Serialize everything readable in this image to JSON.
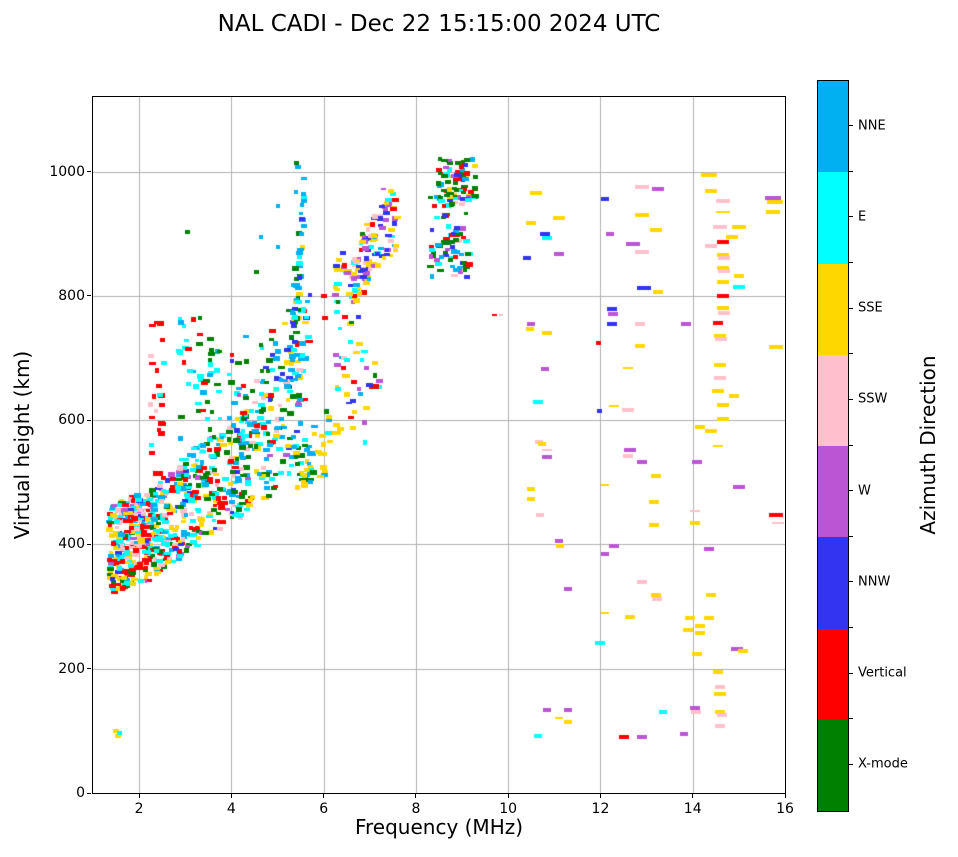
{
  "title": "NAL CADI - Dec 22 15:15:00 2024 UTC",
  "chart_data": {
    "type": "scatter",
    "title": "NAL CADI - Dec 22 15:15:00 2024 UTC",
    "xlabel": "Frequency (MHz)",
    "ylabel": "Virtual height (km)",
    "colorbar_label": "Azimuth Direction",
    "xlim": [
      1,
      16
    ],
    "ylim": [
      0,
      1120
    ],
    "xticks": [
      2,
      4,
      6,
      8,
      10,
      12,
      14,
      16
    ],
    "yticks": [
      0,
      200,
      400,
      600,
      800,
      1000
    ],
    "grid": true,
    "grid_color": "#b0b0b0",
    "legend_position": "right-colorbar",
    "categories": [
      {
        "key": "NNE",
        "label": "NNE",
        "color": "#00b0f0"
      },
      {
        "key": "E",
        "label": "E",
        "color": "#00ffff"
      },
      {
        "key": "SSE",
        "label": "SSE",
        "color": "#ffd700"
      },
      {
        "key": "SSW",
        "label": "SSW",
        "color": "#ffc0cb"
      },
      {
        "key": "W",
        "label": "W",
        "color": "#ba55d3"
      },
      {
        "key": "NNW",
        "label": "NNW",
        "color": "#3333f2"
      },
      {
        "key": "V",
        "label": "Vertical",
        "color": "#ff0000"
      },
      {
        "key": "X",
        "label": "X-mode",
        "color": "#008000"
      }
    ],
    "seed": 42,
    "marker_px": {
      "w": 6,
      "h": 4
    },
    "clusters": [
      {
        "x": [
          1.35,
          2.3
        ],
        "lo": [
          318,
          345
        ],
        "hi": [
          462,
          490
        ],
        "n": 300,
        "mix": {
          "V": 24,
          "E": 20,
          "SSW": 15,
          "SSE": 14,
          "NNE": 10,
          "W": 6,
          "NNW": 5,
          "X": 6
        }
      },
      {
        "x": [
          2.3,
          3.3
        ],
        "lo": [
          345,
          400
        ],
        "hi": [
          490,
          560
        ],
        "n": 200,
        "mix": {
          "V": 15,
          "E": 22,
          "SSW": 12,
          "SSE": 15,
          "NNE": 12,
          "X": 12,
          "W": 6,
          "NNW": 6
        }
      },
      {
        "x": [
          3.3,
          4.4
        ],
        "lo": [
          400,
          450
        ],
        "hi": [
          560,
          620
        ],
        "n": 130,
        "mix": {
          "E": 25,
          "NNE": 15,
          "X": 20,
          "SSE": 14,
          "V": 8,
          "SSW": 10,
          "NNW": 4,
          "W": 4
        }
      },
      {
        "x": [
          4.4,
          5.6
        ],
        "lo": [
          450,
          520
        ],
        "hi": [
          620,
          700
        ],
        "n": 110,
        "mix": {
          "NNE": 25,
          "E": 20,
          "X": 22,
          "SSE": 15,
          "V": 6,
          "SSW": 6,
          "NNW": 3,
          "W": 3
        }
      },
      {
        "x": [
          5.4,
          6.15
        ],
        "lo": [
          485,
          515
        ],
        "hi": [
          565,
          625
        ],
        "n": 45,
        "mix": {
          "SSE": 45,
          "NNE": 20,
          "X": 20,
          "E": 15
        }
      },
      {
        "x": [
          2.25,
          2.55
        ],
        "lo": [
          480,
          480
        ],
        "hi": [
          780,
          780
        ],
        "n": 26,
        "mix": {
          "V": 75,
          "SSW": 10,
          "E": 15
        }
      },
      {
        "x": [
          2.8,
          3.4
        ],
        "lo": [
          480,
          480
        ],
        "hi": [
          770,
          770
        ],
        "n": 40,
        "mix": {
          "E": 45,
          "X": 30,
          "NNE": 15,
          "V": 10
        }
      },
      {
        "x": [
          3.4,
          3.8
        ],
        "lo": [
          490,
          490
        ],
        "hi": [
          740,
          740
        ],
        "n": 28,
        "mix": {
          "X": 50,
          "E": 20,
          "V": 15,
          "NNE": 15
        }
      },
      {
        "x": [
          3.95,
          4.35
        ],
        "lo": [
          450,
          450
        ],
        "hi": [
          735,
          735
        ],
        "n": 40,
        "mix": {
          "X": 30,
          "NNE": 20,
          "NNW": 12,
          "W": 10,
          "E": 18,
          "V": 10
        }
      },
      {
        "x": [
          4.4,
          5.7
        ],
        "lo": [
          560,
          720
        ],
        "hi": [
          700,
          820
        ],
        "n": 70,
        "mix": {
          "NNE": 30,
          "E": 20,
          "X": 20,
          "SSE": 10,
          "V": 8,
          "SSW": 6,
          "NNW": 6
        }
      },
      {
        "x": [
          5.3,
          5.6
        ],
        "lo": [
          640,
          920
        ],
        "hi": [
          780,
          1015
        ],
        "n": 40,
        "mix": {
          "NNE": 45,
          "E": 20,
          "X": 20,
          "NNW": 8,
          "SSE": 7
        }
      },
      {
        "x": [
          6.25,
          7.0
        ],
        "lo": [
          790,
          790
        ],
        "hi": [
          870,
          870
        ],
        "n": 55,
        "mix": {
          "SSE": 40,
          "E": 15,
          "W": 12,
          "NNW": 10,
          "SSW": 10,
          "NNE": 5,
          "V": 4,
          "X": 4
        }
      },
      {
        "x": [
          6.8,
          7.6
        ],
        "lo": [
          815,
          870
        ],
        "hi": [
          905,
          975
        ],
        "n": 75,
        "mix": {
          "W": 22,
          "NNW": 22,
          "SSE": 20,
          "SSW": 12,
          "E": 10,
          "NNE": 6,
          "V": 5,
          "X": 3
        }
      },
      {
        "x": [
          6.25,
          7.2
        ],
        "lo": [
          550,
          550
        ],
        "hi": [
          790,
          790
        ],
        "n": 30,
        "mix": {
          "SSE": 30,
          "NNW": 18,
          "E": 15,
          "W": 12,
          "X": 10,
          "NNE": 8,
          "V": 7
        }
      },
      {
        "x": [
          8.45,
          9.3
        ],
        "lo": [
          955,
          955
        ],
        "hi": [
          1020,
          1020
        ],
        "n": 70,
        "mix": {
          "X": 45,
          "V": 18,
          "SSE": 10,
          "E": 10,
          "NNE": 8,
          "NNW": 5,
          "W": 4
        }
      },
      {
        "x": [
          8.3,
          9.2
        ],
        "lo": [
          830,
          830
        ],
        "hi": [
          960,
          960
        ],
        "n": 80,
        "mix": {
          "X": 30,
          "E": 18,
          "NNE": 15,
          "NNW": 12,
          "V": 10,
          "W": 8,
          "SSW": 4,
          "SSE": 3
        }
      }
    ],
    "points": [
      [
        10.6,
        966,
        "SSE",
        12
      ],
      [
        11.1,
        925,
        "SSE",
        12
      ],
      [
        10.5,
        917,
        "SSE",
        10
      ],
      [
        10.8,
        900,
        "NNW",
        10
      ],
      [
        10.85,
        893,
        "E",
        10
      ],
      [
        10.4,
        861,
        "NNW",
        8
      ],
      [
        11.1,
        867,
        "W",
        10
      ],
      [
        12.1,
        956,
        "NNW",
        8
      ],
      [
        12.9,
        975,
        "SSW",
        14
      ],
      [
        13.25,
        972,
        "W",
        12
      ],
      [
        12.9,
        930,
        "SSE",
        14
      ],
      [
        13.2,
        906,
        "SSE",
        12
      ],
      [
        12.2,
        900,
        "W",
        8
      ],
      [
        12.7,
        884,
        "W",
        14
      ],
      [
        12.9,
        871,
        "SSW",
        14
      ],
      [
        12.95,
        813,
        "NNW",
        14
      ],
      [
        13.25,
        806,
        "SSE",
        10
      ],
      [
        14.35,
        995,
        "SSE",
        16
      ],
      [
        14.4,
        968,
        "SSE",
        12
      ],
      [
        14.65,
        953,
        "SSW",
        14
      ],
      [
        14.65,
        935,
        "SSE",
        14,
        2
      ],
      [
        14.6,
        911,
        "SSW",
        14
      ],
      [
        15.0,
        911,
        "SSE",
        14
      ],
      [
        14.65,
        887,
        "V",
        12
      ],
      [
        14.4,
        881,
        "SSW",
        12
      ],
      [
        14.85,
        895,
        "SSE",
        12
      ],
      [
        14.65,
        866,
        "SSE",
        12
      ],
      [
        14.68,
        861,
        "SSW",
        12
      ],
      [
        14.65,
        845,
        "SSE",
        12
      ],
      [
        14.68,
        840,
        "SSW",
        12
      ],
      [
        15.0,
        832,
        "SSE",
        10
      ],
      [
        14.65,
        823,
        "SSE",
        12
      ],
      [
        15.0,
        815,
        "E",
        12
      ],
      [
        14.65,
        800,
        "V",
        12
      ],
      [
        15.75,
        958,
        "W",
        16
      ],
      [
        15.78,
        951,
        "SSE",
        16
      ],
      [
        15.75,
        935,
        "SSE",
        14
      ],
      [
        14.65,
        781,
        "SSE",
        12
      ],
      [
        14.68,
        772,
        "SSW",
        12
      ],
      [
        14.55,
        756,
        "V",
        10
      ],
      [
        14.6,
        736,
        "SSE",
        12
      ],
      [
        14.62,
        730,
        "SSW",
        12
      ],
      [
        14.6,
        688,
        "SSE",
        12
      ],
      [
        14.6,
        668,
        "SSW",
        12
      ],
      [
        14.55,
        647,
        "SSE",
        12
      ],
      [
        14.9,
        639,
        "SSE",
        10
      ],
      [
        10.5,
        755,
        "W",
        8
      ],
      [
        10.47,
        747,
        "SSE",
        8
      ],
      [
        10.85,
        740,
        "SSE",
        10
      ],
      [
        11.95,
        724,
        "V",
        5
      ],
      [
        10.8,
        682,
        "W",
        8
      ],
      [
        12.6,
        684,
        "SSE",
        10,
        2
      ],
      [
        12.85,
        719,
        "SSE",
        10
      ],
      [
        12.25,
        779,
        "NNW",
        10
      ],
      [
        12.28,
        771,
        "W",
        10
      ],
      [
        12.25,
        755,
        "NNW",
        10
      ],
      [
        12.85,
        755,
        "SSW",
        10
      ],
      [
        13.85,
        755,
        "W",
        10
      ],
      [
        15.8,
        718,
        "SSE",
        14
      ],
      [
        9.7,
        770,
        "V",
        5,
        2
      ],
      [
        10.65,
        629,
        "E",
        10
      ],
      [
        12.3,
        622,
        "SSE",
        10,
        2
      ],
      [
        12.6,
        617,
        "SSW",
        12
      ],
      [
        11.98,
        614,
        "NNW",
        5
      ],
      [
        14.65,
        624,
        "SSE",
        12
      ],
      [
        14.65,
        602,
        "SSE",
        12
      ],
      [
        14.15,
        589,
        "SSE",
        10
      ],
      [
        14.4,
        582,
        "SSE",
        12
      ],
      [
        10.67,
        565,
        "SSW",
        8
      ],
      [
        10.73,
        562,
        "SSE",
        8
      ],
      [
        10.85,
        552,
        "SSW",
        10,
        2
      ],
      [
        10.85,
        540,
        "W",
        10
      ],
      [
        14.55,
        558,
        "SSE",
        10,
        2
      ],
      [
        12.65,
        552,
        "W",
        12
      ],
      [
        12.6,
        542,
        "SSW",
        10
      ],
      [
        12.9,
        532,
        "W",
        10
      ],
      [
        14.1,
        532,
        "W",
        10
      ],
      [
        13.2,
        510,
        "SSE",
        10
      ],
      [
        15.0,
        492,
        "W",
        12
      ],
      [
        12.1,
        495,
        "SSE",
        8,
        2
      ],
      [
        10.5,
        490,
        "SSE",
        8
      ],
      [
        10.5,
        473,
        "SSE",
        8
      ],
      [
        13.15,
        468,
        "SSE",
        10
      ],
      [
        10.7,
        448,
        "SSW",
        8
      ],
      [
        14.05,
        453,
        "SSW",
        10,
        2
      ],
      [
        15.8,
        448,
        "V",
        14
      ],
      [
        15.85,
        435,
        "SSW",
        12,
        2
      ],
      [
        14.05,
        435,
        "SSE",
        10
      ],
      [
        13.15,
        432,
        "SSE",
        10
      ],
      [
        11.1,
        405,
        "W",
        8
      ],
      [
        11.12,
        398,
        "SSE",
        8
      ],
      [
        12.3,
        398,
        "W",
        10
      ],
      [
        12.1,
        385,
        "W",
        8
      ],
      [
        14.35,
        392,
        "W",
        10
      ],
      [
        11.3,
        329,
        "W",
        8
      ],
      [
        12.9,
        339,
        "SSW",
        10
      ],
      [
        13.2,
        318,
        "SSE",
        10
      ],
      [
        13.22,
        312,
        "SSW",
        10
      ],
      [
        14.4,
        318,
        "SSE",
        10
      ],
      [
        12.1,
        289,
        "SSE",
        8,
        2
      ],
      [
        12.65,
        284,
        "SSE",
        10
      ],
      [
        13.95,
        282,
        "SSE",
        10
      ],
      [
        14.15,
        268,
        "SSE",
        10
      ],
      [
        14.35,
        281,
        "SSE",
        10
      ],
      [
        13.9,
        263,
        "SSE",
        10
      ],
      [
        14.15,
        258,
        "SSE",
        10
      ],
      [
        12.0,
        242,
        "E",
        10
      ],
      [
        14.95,
        232,
        "W",
        12
      ],
      [
        15.1,
        229,
        "SSE",
        10
      ],
      [
        14.1,
        223,
        "SSE",
        10
      ],
      [
        14.55,
        195,
        "SSE",
        10
      ],
      [
        14.6,
        171,
        "SSW",
        10
      ],
      [
        14.6,
        159,
        "SSE",
        12
      ],
      [
        14.05,
        136,
        "W",
        10
      ],
      [
        14.07,
        130,
        "SSW",
        10
      ],
      [
        14.6,
        130,
        "SSE",
        10
      ],
      [
        14.63,
        125,
        "SSW",
        10
      ],
      [
        14.6,
        108,
        "SSW",
        10
      ],
      [
        10.85,
        134,
        "W",
        8
      ],
      [
        11.3,
        134,
        "W",
        8
      ],
      [
        11.1,
        121,
        "SSE",
        8,
        2
      ],
      [
        11.3,
        114,
        "SSE",
        8
      ],
      [
        10.65,
        92,
        "E",
        8
      ],
      [
        12.5,
        90,
        "V",
        10
      ],
      [
        12.9,
        90,
        "W",
        10
      ],
      [
        13.8,
        95,
        "W",
        8
      ],
      [
        13.35,
        130,
        "E",
        8
      ],
      [
        1.5,
        100,
        "SSE",
        6
      ],
      [
        1.55,
        92,
        "SSE",
        6
      ],
      [
        1.58,
        97,
        "E",
        5
      ],
      [
        3.05,
        902,
        "X",
        5
      ],
      [
        4.55,
        838,
        "X",
        5
      ],
      [
        6.0,
        800,
        "V",
        6
      ],
      [
        6.02,
        765,
        "V",
        6
      ],
      [
        6.3,
        819,
        "E",
        8
      ],
      [
        6.55,
        803,
        "SSE",
        7
      ],
      [
        6.28,
        774,
        "E",
        6
      ],
      [
        6.47,
        766,
        "V",
        6
      ],
      [
        6.77,
        722,
        "SSE",
        7
      ],
      [
        6.44,
        700,
        "SSW",
        6
      ],
      [
        6.5,
        697,
        "E",
        6
      ],
      [
        6.48,
        671,
        "SSE",
        8
      ],
      [
        6.3,
        650,
        "E",
        6
      ],
      [
        7.0,
        656,
        "NNW",
        7
      ],
      [
        7.2,
        663,
        "W",
        7
      ],
      [
        6.63,
        631,
        "NNW",
        6
      ],
      [
        6.55,
        627,
        "NNW",
        6,
        2
      ],
      [
        6.28,
        592,
        "SSE",
        7
      ],
      [
        6.28,
        579,
        "SSE",
        9
      ],
      [
        5.45,
        1008,
        "NNE",
        6
      ],
      [
        5.42,
        1014,
        "X",
        5
      ],
      [
        7.55,
        955,
        "V",
        7
      ],
      [
        7.52,
        940,
        "V",
        7
      ],
      [
        7.45,
        968,
        "SSE",
        6
      ],
      [
        7.3,
        972,
        "W",
        5,
        2
      ],
      [
        5.4,
        967,
        "NNE",
        4
      ],
      [
        5.0,
        945,
        "NNE",
        4
      ],
      [
        4.65,
        895,
        "NNE",
        4
      ],
      [
        5.0,
        878,
        "NNE",
        4
      ],
      [
        9.85,
        770,
        "SSW",
        4,
        2
      ]
    ]
  }
}
